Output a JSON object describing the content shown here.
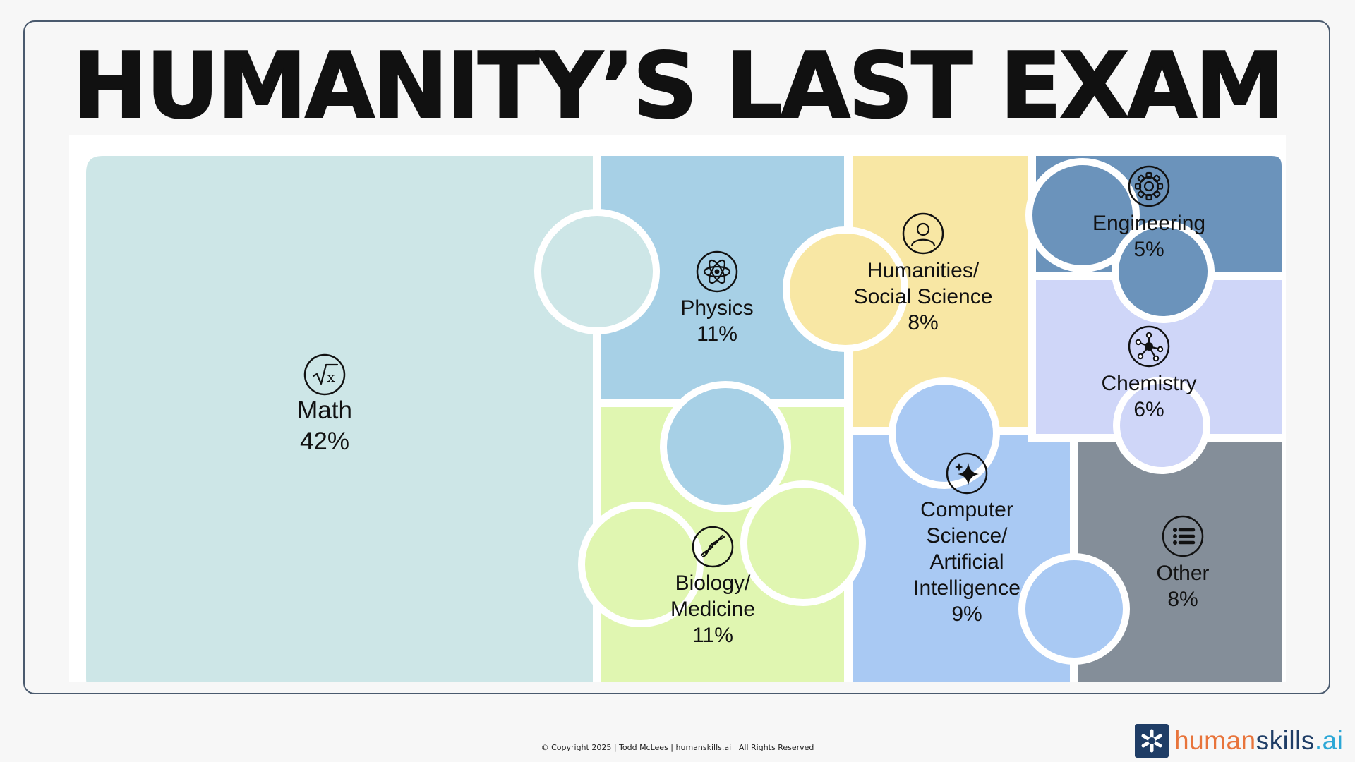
{
  "title": "HUMANITY’S LAST EXAM",
  "chart_data": {
    "type": "treemap",
    "title": "HUMANITY’S LAST EXAM",
    "categories": [
      "Math",
      "Physics",
      "Biology/\nMedicine",
      "Humanities/\nSocial Science",
      "Computer\nScience/\nArtificial\nIntelligence",
      "Engineering",
      "Chemistry",
      "Other"
    ],
    "values": [
      42,
      11,
      11,
      8,
      9,
      5,
      6,
      8
    ],
    "unit": "%",
    "items": [
      {
        "id": "math",
        "label_lines": [
          "Math"
        ],
        "value": 42,
        "value_label": "42%",
        "color": "#cde6e7",
        "icon": "square-root-x-icon"
      },
      {
        "id": "physics",
        "label_lines": [
          "Physics"
        ],
        "value": 11,
        "value_label": "11%",
        "color": "#a7d0e6",
        "icon": "atom-icon"
      },
      {
        "id": "biology",
        "label_lines": [
          "Biology/",
          "Medicine"
        ],
        "value": 11,
        "value_label": "11%",
        "color": "#e0f6b1",
        "icon": "dna-icon"
      },
      {
        "id": "humanities",
        "label_lines": [
          "Humanities/",
          "Social Science"
        ],
        "value": 8,
        "value_label": "8%",
        "color": "#f8e7a4",
        "icon": "person-icon"
      },
      {
        "id": "cs",
        "label_lines": [
          "Computer",
          "Science/",
          "Artificial",
          "Intelligence"
        ],
        "value": 9,
        "value_label": "9%",
        "color": "#a9c9f3",
        "icon": "sparkle-icon"
      },
      {
        "id": "engineering",
        "label_lines": [
          "Engineering"
        ],
        "value": 5,
        "value_label": "5%",
        "color": "#6b93bb",
        "icon": "gear-icon"
      },
      {
        "id": "chemistry",
        "label_lines": [
          "Chemistry"
        ],
        "value": 6,
        "value_label": "6%",
        "color": "#cfd6f8",
        "icon": "molecule-icon"
      },
      {
        "id": "other",
        "label_lines": [
          "Other"
        ],
        "value": 8,
        "value_label": "8%",
        "color": "#848e99",
        "icon": "list-icon"
      }
    ]
  },
  "footer": {
    "text": "© Copyright 2025 |  Todd McLees  |  humanskills.ai  | All Rights Reserved"
  },
  "logo": {
    "part1": "human",
    "part2": "skills",
    "part3": ".ai",
    "colors": {
      "human": "#e8743b",
      "skills": "#1f3d66",
      "ai": "#2ba7d6",
      "mark": "#1f3d66"
    }
  }
}
